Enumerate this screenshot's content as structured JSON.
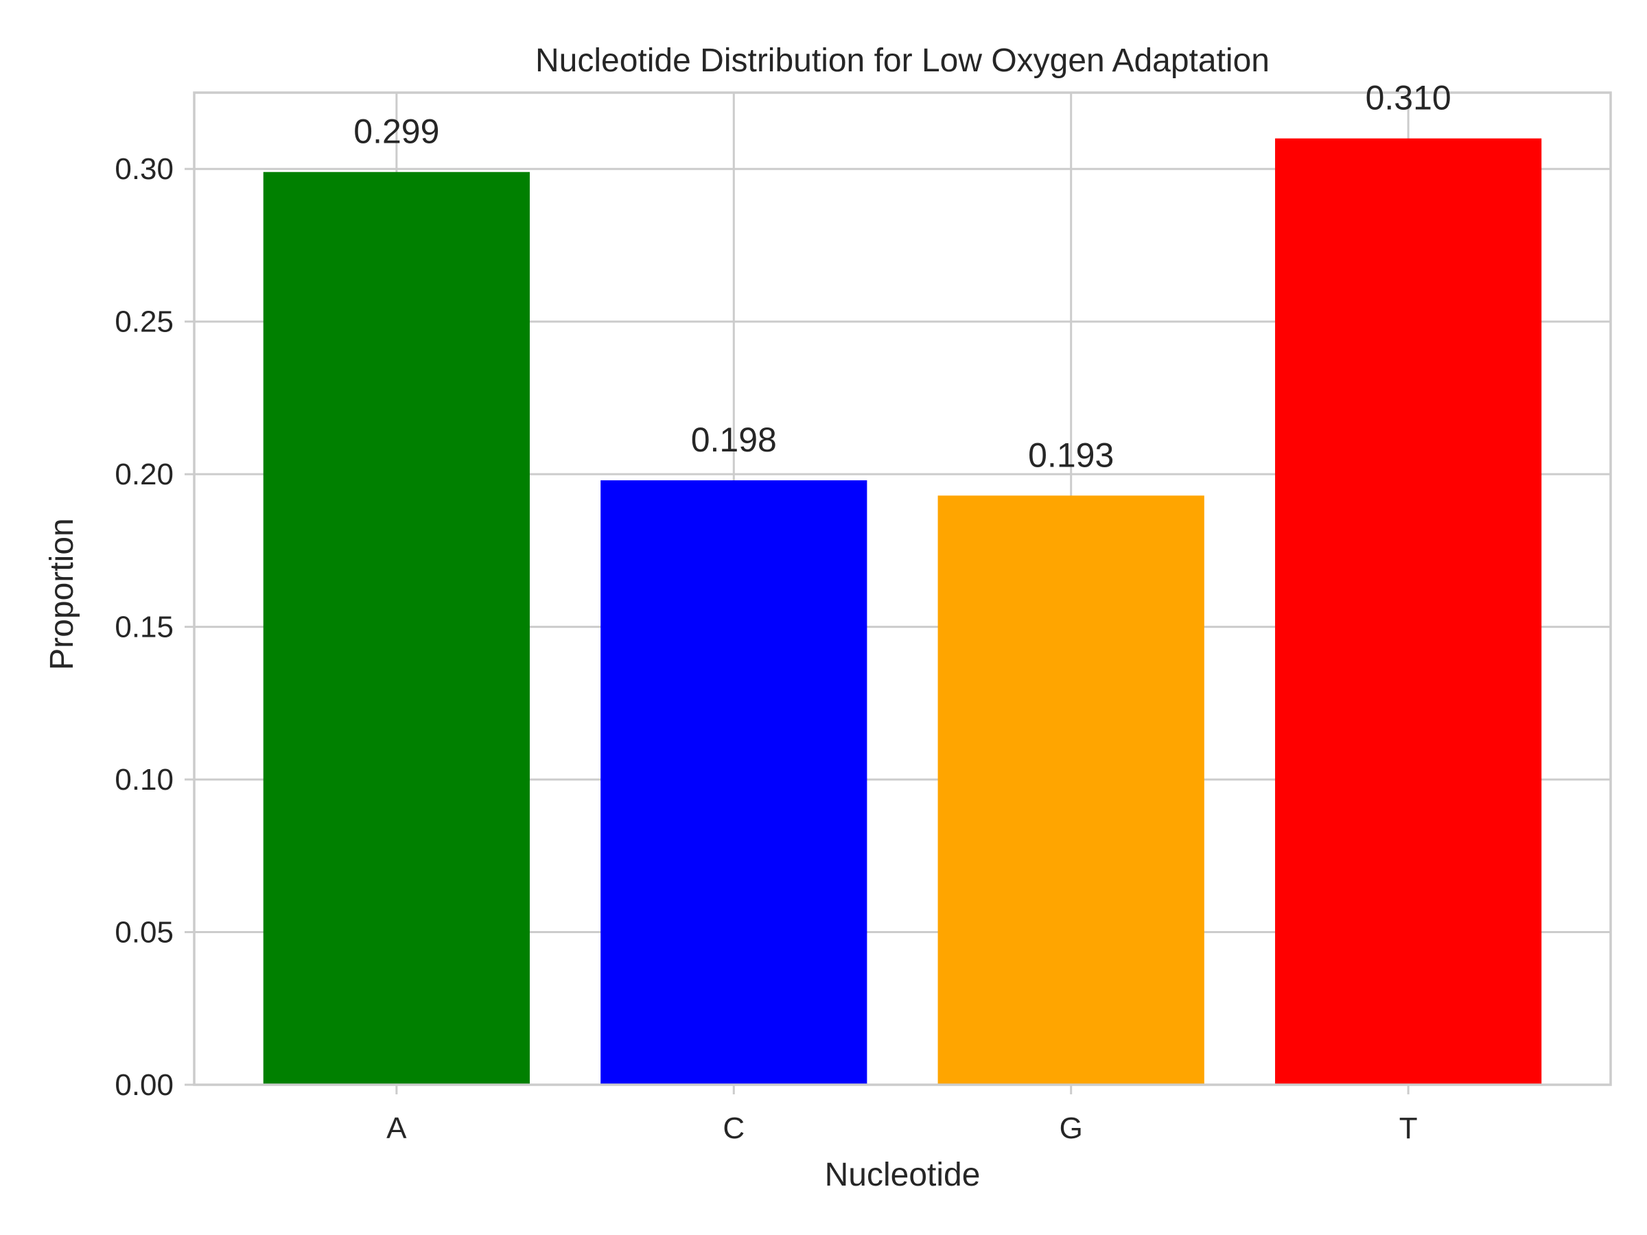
{
  "chart_data": {
    "type": "bar",
    "title": "Nucleotide Distribution for Low Oxygen Adaptation",
    "xlabel": "Nucleotide",
    "ylabel": "Proportion",
    "categories": [
      "A",
      "C",
      "G",
      "T"
    ],
    "values": [
      0.299,
      0.198,
      0.193,
      0.31
    ],
    "value_labels": [
      "0.299",
      "0.198",
      "0.193",
      "0.310"
    ],
    "colors": [
      "#008000",
      "#0000ff",
      "#ffa500",
      "#ff0000"
    ],
    "ylim": [
      0,
      0.325
    ],
    "yticks": [
      0.0,
      0.05,
      0.1,
      0.15,
      0.2,
      0.25,
      0.3
    ],
    "ytick_labels": [
      "0.00",
      "0.05",
      "0.10",
      "0.15",
      "0.20",
      "0.25",
      "0.30"
    ],
    "grid": true,
    "legend": "none"
  }
}
